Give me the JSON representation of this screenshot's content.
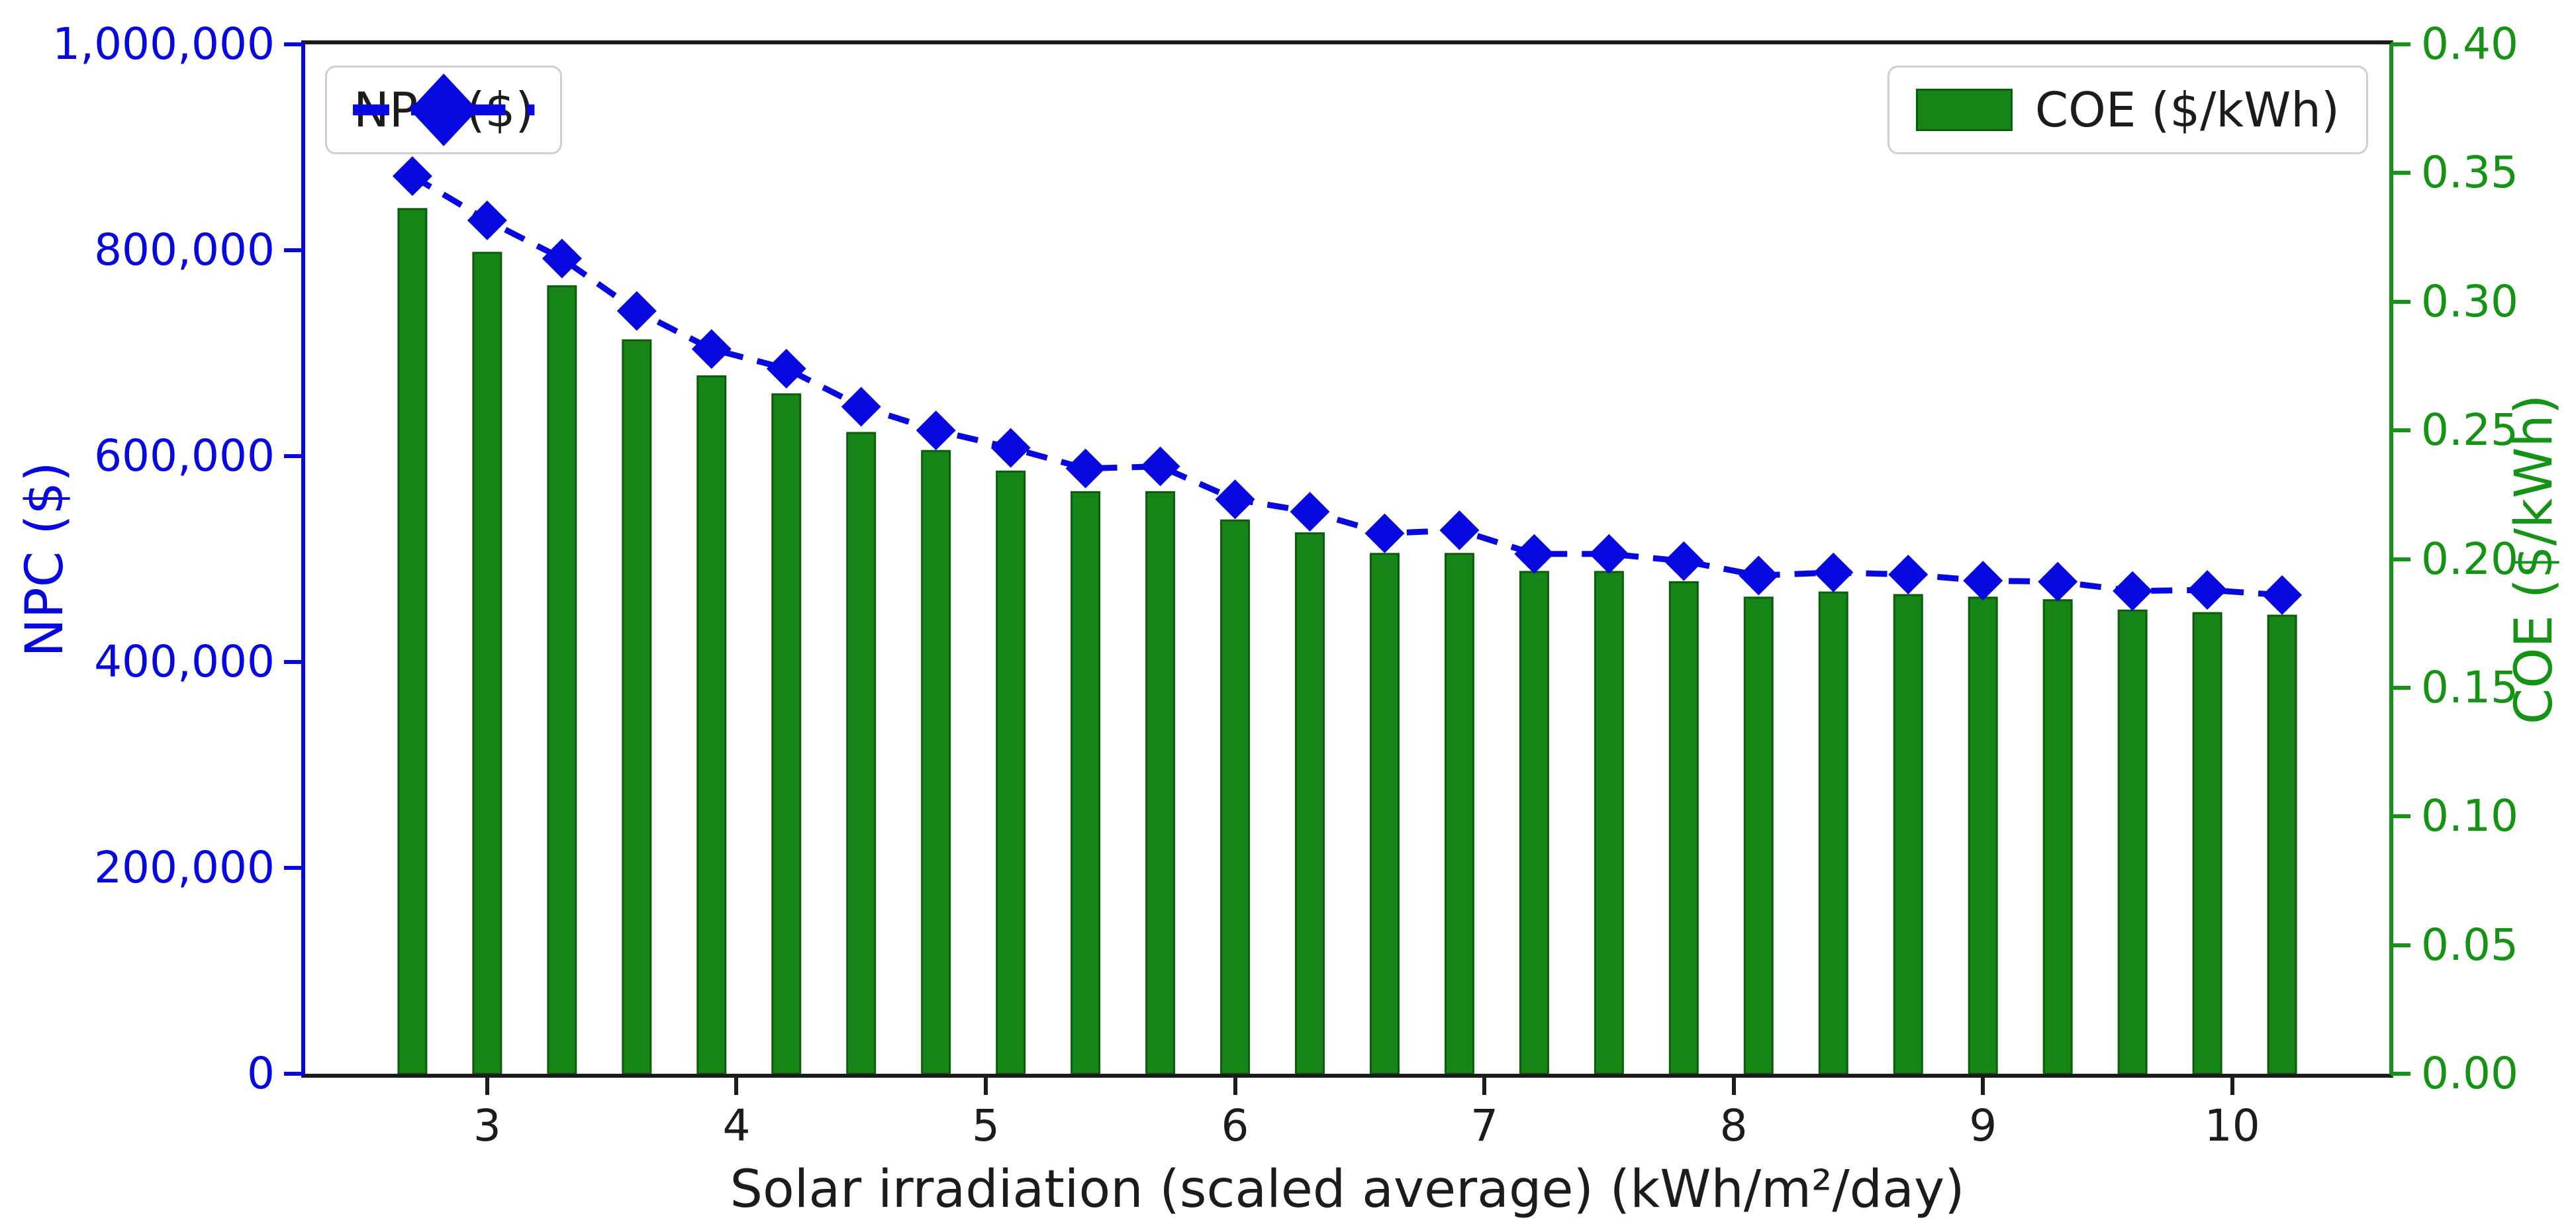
{
  "chart_data": {
    "type": "bar+line dual-axis",
    "title": "",
    "x_axis": {
      "title": "Solar irradiation (scaled average) (kWh/m²/day)",
      "ticks": [
        "3",
        "4",
        "5",
        "6",
        "7",
        "8",
        "9",
        "10"
      ],
      "tick_values": [
        3,
        4,
        5,
        6,
        7,
        8,
        9,
        10
      ],
      "range": [
        2.27,
        10.63
      ],
      "color": "#1c1c1c"
    },
    "left_axis": {
      "title": "NPC ($)",
      "ticks": [
        "0",
        "200,000",
        "400,000",
        "600,000",
        "800,000",
        "1,000,000"
      ],
      "tick_values": [
        0,
        200000,
        400000,
        600000,
        800000,
        1000000
      ],
      "range": [
        0,
        1000000
      ],
      "color": "#0707e0"
    },
    "right_axis": {
      "title": "COE ($/kWh)",
      "ticks": [
        "0.00",
        "0.05",
        "0.10",
        "0.15",
        "0.20",
        "0.25",
        "0.30",
        "0.35",
        "0.40"
      ],
      "tick_values": [
        0.0,
        0.05,
        0.1,
        0.15,
        0.2,
        0.25,
        0.3,
        0.35,
        0.4
      ],
      "range": [
        0,
        0.4
      ],
      "color": "#149314"
    },
    "x": [
      2.7,
      3.0,
      3.3,
      3.6,
      3.9,
      4.2,
      4.5,
      4.8,
      5.1,
      5.4,
      5.7,
      6.0,
      6.3,
      6.6,
      6.9,
      7.2,
      7.5,
      7.8,
      8.1,
      8.4,
      8.7,
      9.0,
      9.3,
      9.6,
      9.9,
      10.2
    ],
    "series": [
      {
        "name": "NPC ($)",
        "type": "line",
        "axis": "left",
        "linestyle": "dashed",
        "marker": "diamond",
        "color": "#0707e0",
        "values": [
          872000,
          829000,
          792000,
          741000,
          704000,
          685000,
          648000,
          625000,
          608000,
          588000,
          590000,
          558000,
          546000,
          525000,
          528000,
          505000,
          505000,
          498000,
          484000,
          487000,
          485000,
          479000,
          478000,
          469000,
          470000,
          465000
        ]
      },
      {
        "name": "COE ($/kWh)",
        "type": "bar",
        "axis": "right",
        "color": "#168416",
        "edge_color": "#0b5e0b",
        "values": [
          0.336,
          0.319,
          0.306,
          0.285,
          0.271,
          0.264,
          0.249,
          0.242,
          0.234,
          0.226,
          0.226,
          0.215,
          0.21,
          0.202,
          0.202,
          0.195,
          0.195,
          0.191,
          0.185,
          0.187,
          0.186,
          0.185,
          0.184,
          0.18,
          0.179,
          0.178
        ]
      }
    ],
    "legend": {
      "npc_label": "NPC ($)",
      "coe_label": "COE ($/kWh)",
      "positions": [
        "upper left",
        "upper right"
      ]
    },
    "grid": false,
    "background": "#ffffff"
  }
}
